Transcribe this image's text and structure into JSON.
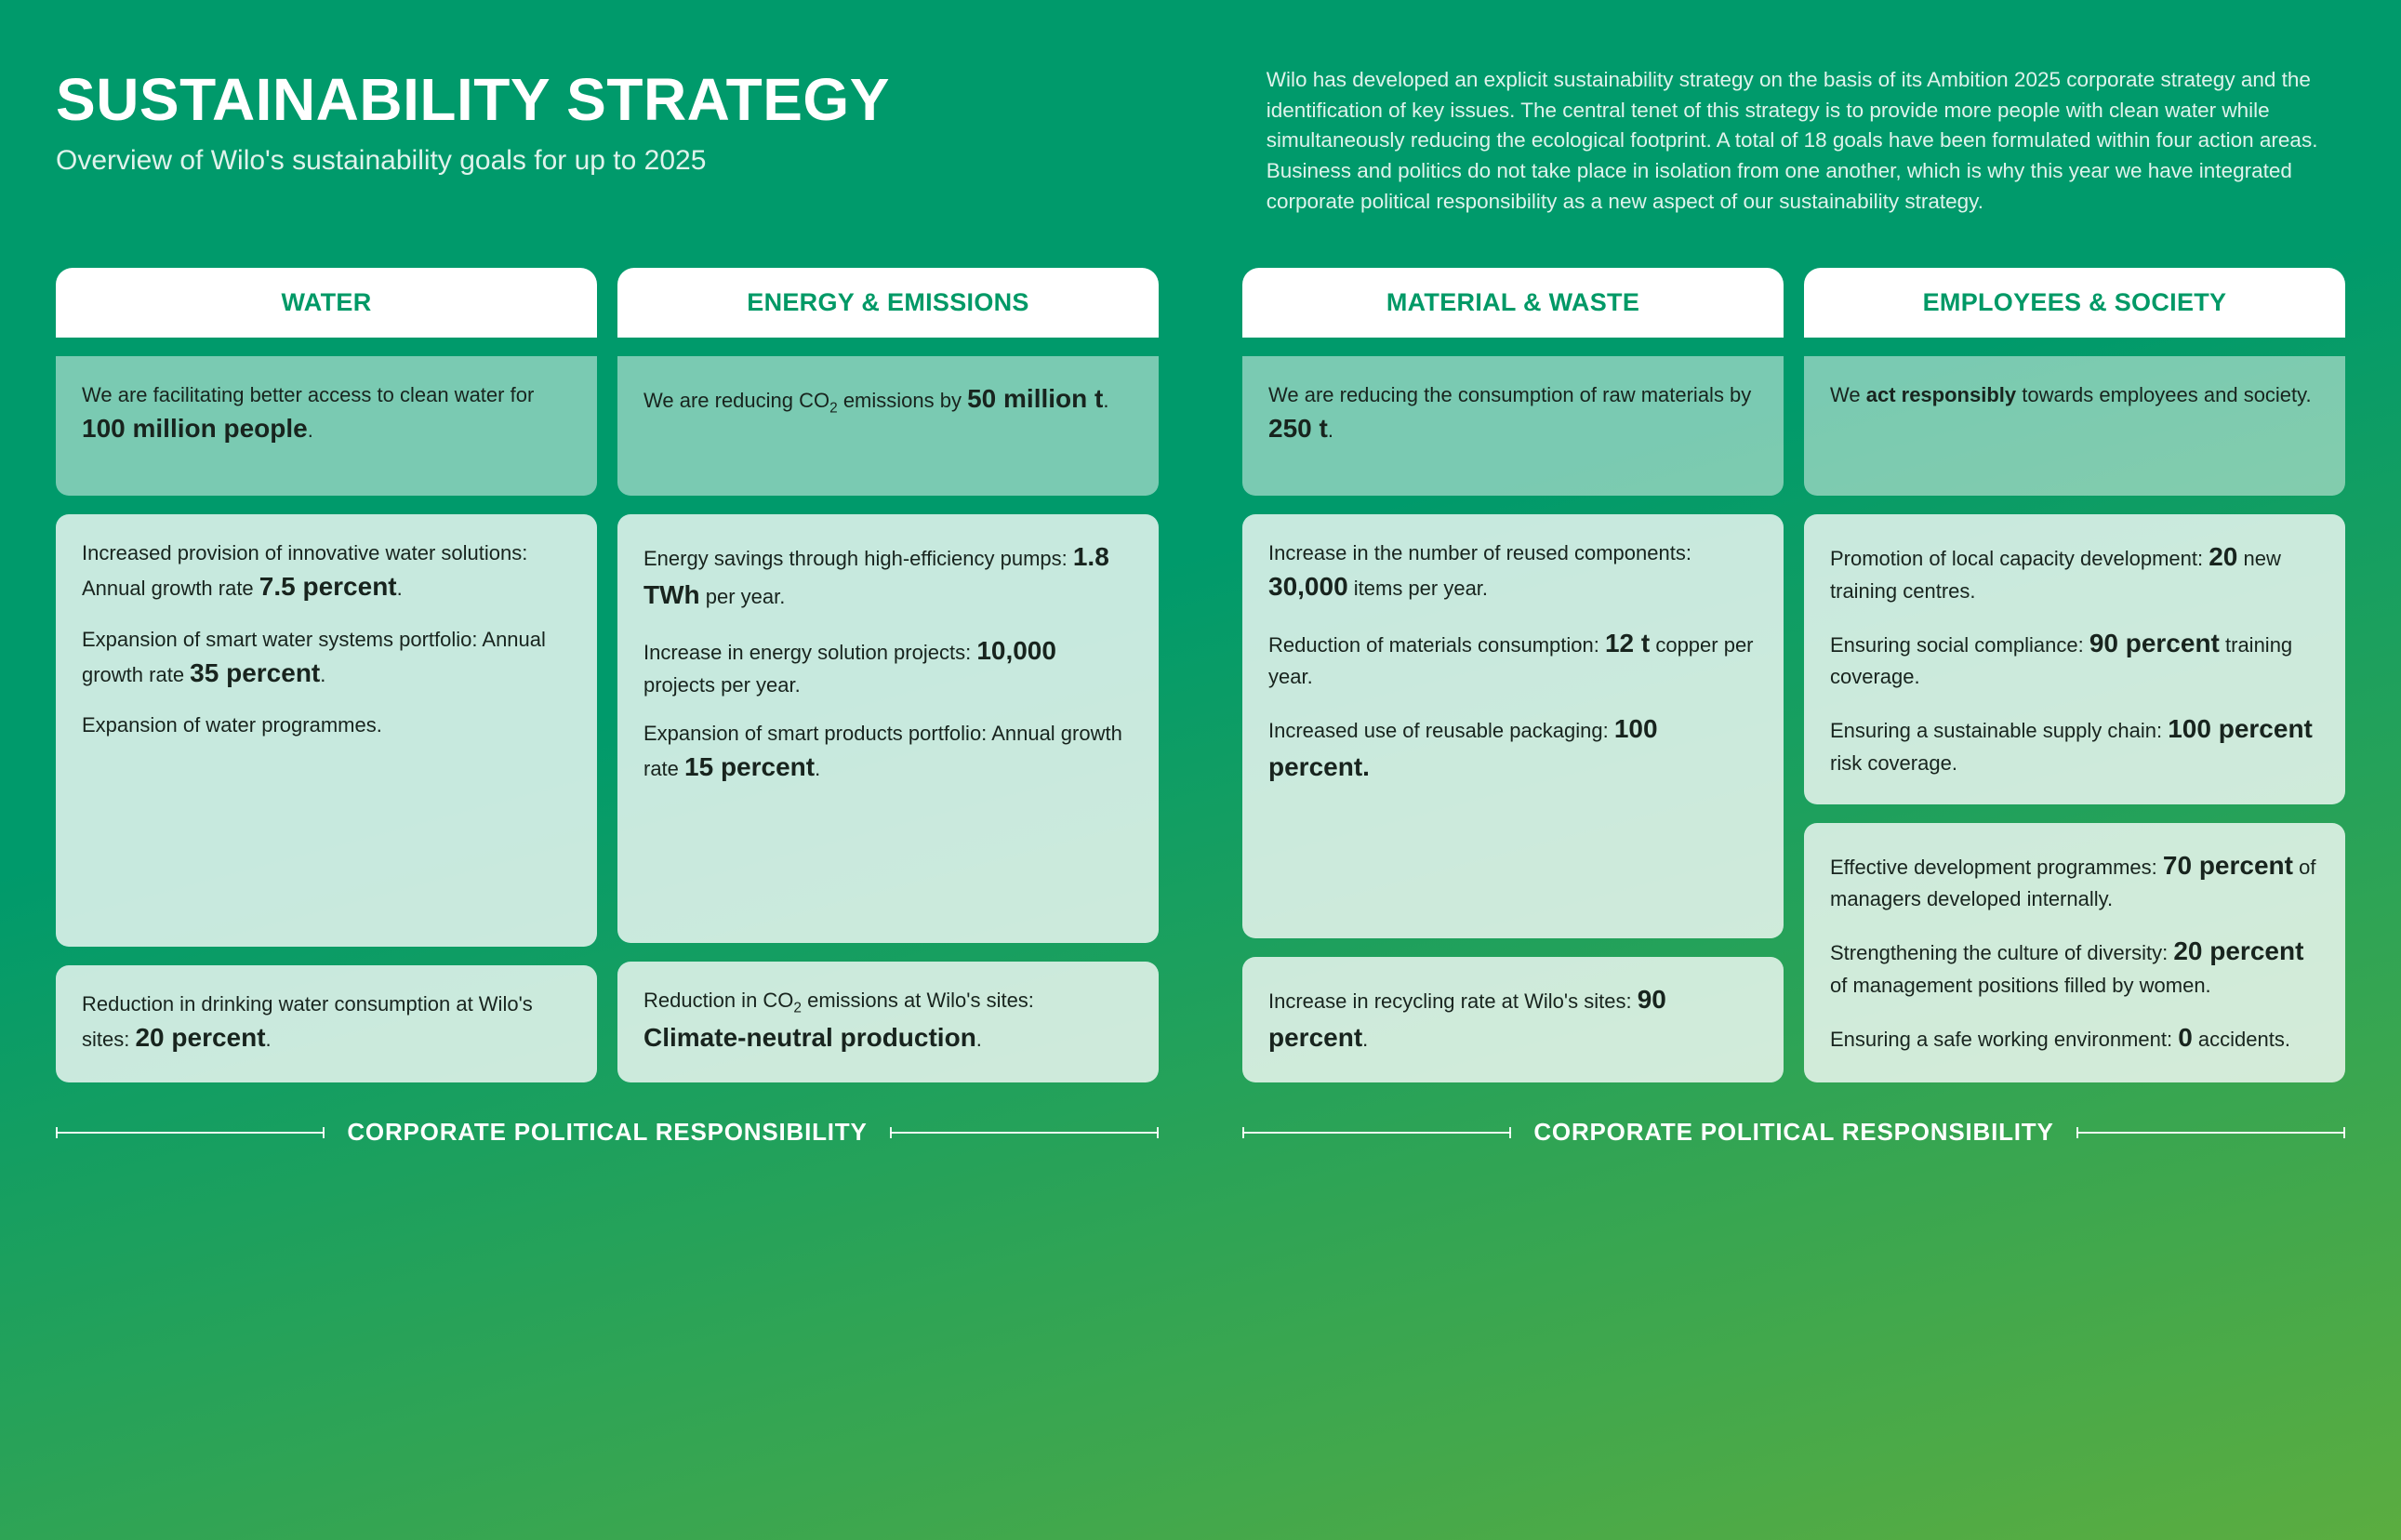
{
  "header": {
    "title": "SUSTAINABILITY STRATEGY",
    "subtitle": "Overview of Wilo's sustainability goals for up to 2025",
    "intro": "Wilo has developed an explicit sustainability strategy on the basis of its Ambition 2025 corporate strategy and the identification of key issues. The central tenet of this strategy is to provide more people with clean water while simultaneously reducing the ecological footprint. A total of 18 goals have been formulated within four action areas. Business and politics do not take place in isolation from one another, which is why this year we have integrated corporate political responsibility as a new aspect of our sustainability strategy."
  },
  "footer_label": "CORPORATE POLITICAL RESPONSIBILITY",
  "colors": {
    "tab_text": "#009966",
    "body_text": "#18241e",
    "gradient_start": "#009a6b",
    "gradient_end": "#5bad40",
    "hero_bg": "rgba(255,255,255,0.48)",
    "block_bg": "rgba(255,255,255,0.78)"
  },
  "columns": {
    "water": {
      "tab": "WATER",
      "hero_html": "We are facilitating better access to clean water for <span class=\"big\">100 million people</span>.",
      "mid_html": "<p>Increased provision of innovative water solutions: Annual growth rate <span class=\"big\">7.5 percent</span>.</p><p>Expansion of smart water systems portfolio: Annual growth rate <span class=\"big\">35 percent</span>.</p><p>Expansion of water programmes.</p>",
      "bot_html": "<p>Reduction in drinking water consumption at Wilo's sites: <span class=\"big\">20 percent</span>.</p>"
    },
    "energy": {
      "tab": "ENERGY & EMISSIONS",
      "hero_html": "We are reducing CO<sub>2</sub> emissions by <span class=\"big\">50 million t</span>.",
      "mid_html": "<p>Energy savings through high-efficiency pumps: <span class=\"big\">1.8 TWh</span> per year.</p><p>Increase in energy solution projects: <span class=\"big\">10,000</span> projects per year.</p><p>Expansion of smart products portfolio: Annual growth rate <span class=\"big\">15 percent</span>.</p>",
      "bot_html": "<p>Reduction in CO<sub>2</sub> emissions at Wilo's sites: <span class=\"big\">Climate-neutral production</span>.</p>"
    },
    "material": {
      "tab": "MATERIAL & WASTE",
      "hero_html": "We are reducing the consumption of raw materials by <span class=\"big\">250 t</span>.",
      "mid_html": "<p>Increase in the number of reused components: <span class=\"big\">30,000</span> items per year.</p><p>Reduction of materials consumption: <span class=\"big\">12 t</span> copper per year.</p><p>Increased use of reusable packaging: <span class=\"big\">100 percent.</span></p>",
      "bot_html": "<p>Increase in recycling rate at Wilo's sites: <span class=\"big\">90 percent</span>.</p>"
    },
    "employees": {
      "tab": "EMPLOYEES & SOCIETY",
      "hero_html": "We <strong>act responsibly</strong> towards employees and society.",
      "mid_html": "<p>Promotion of local capacity development: <span class=\"big\">20</span> new training centres.</p><p>Ensuring social compliance: <span class=\"big\">90 percent</span> training coverage.</p><p>Ensuring a sustainable supply chain: <span class=\"big\">100 percent</span> risk coverage.</p>",
      "bot_html": "<p>Effective development programmes: <span class=\"big\">70 percent</span> of managers developed internally.</p><p>Strengthening the culture of diversity: <span class=\"big\">20 percent</span> of management positions filled by women.</p><p>Ensuring a safe working environment: <span class=\"big\">0</span> accidents.</p>"
    }
  }
}
